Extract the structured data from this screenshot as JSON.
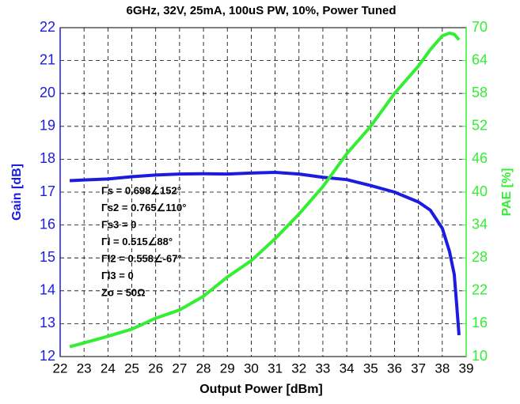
{
  "chart_data": {
    "type": "line",
    "title": "6GHz, 32V, 25mA, 100uS PW, 10%, Power Tuned",
    "xlabel": "Output Power [dBm]",
    "ylabel": "Gain [dB]",
    "y2label": "PAE [%]",
    "xlim": [
      22,
      39
    ],
    "xticks": [
      22,
      23,
      24,
      25,
      26,
      27,
      28,
      29,
      30,
      31,
      32,
      33,
      34,
      35,
      36,
      37,
      38,
      39
    ],
    "ylim": [
      12,
      22
    ],
    "yticks": [
      12,
      13,
      14,
      15,
      16,
      17,
      18,
      19,
      20,
      21,
      22
    ],
    "y2lim": [
      10,
      70
    ],
    "y2ticks": [
      10,
      16,
      22,
      28,
      34,
      40,
      46,
      52,
      58,
      64,
      70
    ],
    "grid": true,
    "annotations": [
      "Γs = 0.698∠152°",
      "Γs2 = 0.765∠110°",
      "Γs3 = 0",
      "Γl = 0.515∠88°",
      "Γl2 = 0.558∠-67°",
      "Γl3 = 0",
      "Zo = 50Ω"
    ],
    "series": [
      {
        "color": "#1c1ce0",
        "axis": "y",
        "x": [
          22.4,
          23,
          24,
          25,
          26,
          27,
          28,
          29,
          30,
          31,
          32,
          33,
          34,
          35,
          36,
          37,
          37.5,
          38,
          38.3,
          38.5,
          38.6,
          38.7
        ],
        "values": [
          17.35,
          17.37,
          17.4,
          17.47,
          17.52,
          17.55,
          17.56,
          17.55,
          17.58,
          17.6,
          17.55,
          17.45,
          17.38,
          17.2,
          17.0,
          16.7,
          16.45,
          15.9,
          15.2,
          14.5,
          13.6,
          12.65
        ]
      },
      {
        "color": "#33ee33",
        "axis": "y2",
        "x": [
          22.4,
          23,
          24,
          25,
          25.5,
          26,
          27,
          28,
          29,
          30,
          31,
          32,
          33,
          34,
          35,
          36,
          37,
          37.5,
          38,
          38.3,
          38.5,
          38.7
        ],
        "values": [
          11.8,
          12.5,
          13.7,
          15,
          16,
          17,
          18.5,
          21,
          24.5,
          27.5,
          31.5,
          36,
          41,
          47,
          52,
          58,
          63,
          66,
          68.5,
          69,
          68.8,
          67.8
        ]
      }
    ]
  }
}
